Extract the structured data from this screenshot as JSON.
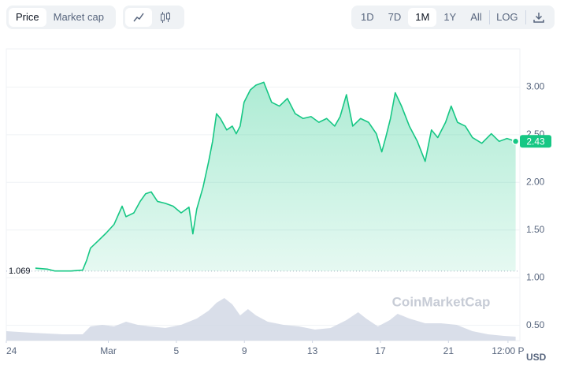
{
  "toolbar": {
    "view": [
      "Price",
      "Market cap"
    ],
    "range": [
      "1D",
      "7D",
      "1M",
      "1Y",
      "All",
      "LOG"
    ]
  },
  "chart_data": {
    "type": "line",
    "watermark": "CoinMarketCap",
    "unit": "USD",
    "xlim": [
      0,
      30.2
    ],
    "ylim": [
      0.34,
      3.4
    ],
    "xticks": [
      {
        "value": 0,
        "label": "24"
      },
      {
        "value": 6,
        "label": "Mar"
      },
      {
        "value": 10,
        "label": "5"
      },
      {
        "value": 14,
        "label": "9"
      },
      {
        "value": 18,
        "label": "13"
      },
      {
        "value": 22,
        "label": "17"
      },
      {
        "value": 26,
        "label": "21"
      },
      {
        "value": 29.5,
        "label": "12:00 P"
      }
    ],
    "yticks": [
      {
        "value": 0.5,
        "label": "0.50"
      },
      {
        "value": 1,
        "label": "1.00"
      },
      {
        "value": 1.5,
        "label": "1.50"
      },
      {
        "value": 2,
        "label": "2.00"
      },
      {
        "value": 2.5,
        "label": "2.50"
      },
      {
        "value": 3,
        "label": "3.00"
      }
    ],
    "grid": true,
    "baseline": 1.069,
    "last_value": 2.43,
    "price": {
      "color": "#16c784",
      "x": [
        1.71,
        2.41,
        2.87,
        3.8,
        4.49,
        4.72,
        4.95,
        5.42,
        5.88,
        6.34,
        6.81,
        7.04,
        7.5,
        7.87,
        8.19,
        8.52,
        8.89,
        9.35,
        9.81,
        10.28,
        10.74,
        10.97,
        11.2,
        11.57,
        11.9,
        12.13,
        12.36,
        12.59,
        12.96,
        13.29,
        13.52,
        13.75,
        13.98,
        14.35,
        14.68,
        15.14,
        15.6,
        16.06,
        16.53,
        16.99,
        17.45,
        17.92,
        18.38,
        18.84,
        19.31,
        19.63,
        20,
        20.37,
        20.83,
        21.3,
        21.76,
        22.08,
        22.31,
        22.59,
        22.87,
        23.24,
        23.7,
        24.17,
        24.63,
        25,
        25.37,
        25.83,
        26.16,
        26.53,
        26.99,
        27.41,
        27.96,
        28.52,
        28.98,
        29.44,
        29.95
      ],
      "values": [
        1.1,
        1.09,
        1.07,
        1.07,
        1.08,
        1.18,
        1.31,
        1.39,
        1.47,
        1.56,
        1.75,
        1.64,
        1.68,
        1.8,
        1.88,
        1.9,
        1.8,
        1.78,
        1.75,
        1.68,
        1.74,
        1.46,
        1.72,
        1.95,
        2.22,
        2.43,
        2.72,
        2.67,
        2.55,
        2.59,
        2.51,
        2.59,
        2.84,
        2.97,
        3.02,
        3.05,
        2.84,
        2.8,
        2.88,
        2.72,
        2.67,
        2.69,
        2.63,
        2.67,
        2.59,
        2.69,
        2.92,
        2.59,
        2.67,
        2.63,
        2.51,
        2.32,
        2.47,
        2.67,
        2.94,
        2.8,
        2.59,
        2.43,
        2.22,
        2.55,
        2.47,
        2.63,
        2.8,
        2.63,
        2.59,
        2.47,
        2.41,
        2.51,
        2.43,
        2.46,
        2.43
      ]
    },
    "volume": {
      "color": "#cfd6e4",
      "y2lim": [
        0,
        100
      ],
      "x": [
        0,
        1.48,
        3.33,
        4.49,
        4.95,
        5.65,
        6.34,
        7.04,
        7.73,
        8.43,
        9.35,
        10.28,
        11.2,
        11.9,
        12.36,
        12.82,
        13.29,
        13.75,
        14.21,
        14.68,
        15.37,
        16.3,
        17.22,
        18.15,
        19.07,
        20,
        20.69,
        21.16,
        21.85,
        22.55,
        23.01,
        23.7,
        24.63,
        25.56,
        26.48,
        27.41,
        28.33,
        29.26,
        29.95
      ],
      "values": [
        12,
        10,
        8,
        8,
        18,
        20,
        18,
        24,
        20,
        18,
        16,
        20,
        28,
        38,
        48,
        54,
        46,
        32,
        40,
        32,
        24,
        20,
        18,
        14,
        16,
        26,
        36,
        28,
        18,
        26,
        34,
        28,
        22,
        22,
        20,
        12,
        8,
        6,
        5
      ]
    }
  }
}
